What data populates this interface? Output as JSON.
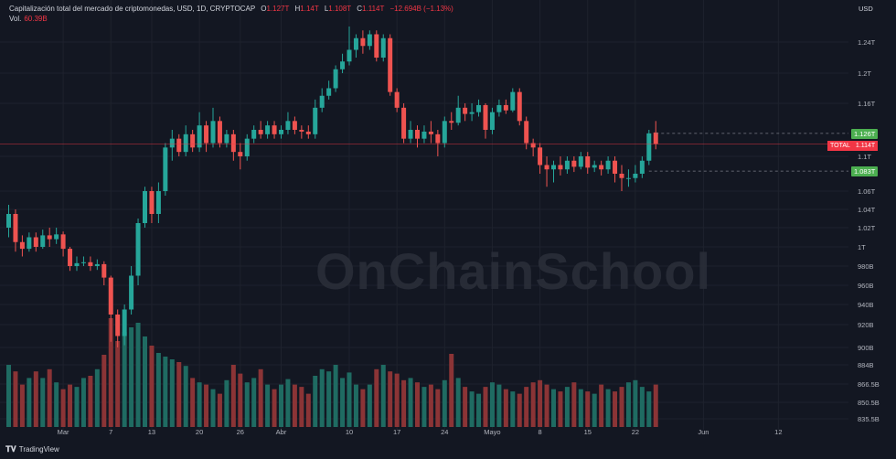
{
  "header": {
    "title": "Capitalización total del mercado de criptomonedas, USD, 1D, CRYPTOCAP",
    "ohlc": [
      {
        "label": "O",
        "value": "1.127T"
      },
      {
        "label": "H",
        "value": "1.14T"
      },
      {
        "label": "L",
        "value": "1.108T"
      },
      {
        "label": "C",
        "value": "1.114T"
      }
    ],
    "change": "−12.694B (−1.13%)",
    "vol_label": "Vol.",
    "vol_value": "60.39B"
  },
  "axis_currency": "USD",
  "brand": "TradingView",
  "watermark": "OnChainSchool",
  "price_tags": {
    "high_line": "1.126T",
    "total_label": "TOTAL",
    "total_value": "1.114T",
    "low_line": "1.083T"
  },
  "colors": {
    "up": "#26a69a",
    "down": "#ef5350",
    "bg": "#131722",
    "grid": "#1e222d"
  },
  "chart_data": {
    "type": "candlestick",
    "y_ticks": [
      "1.24T",
      "1.2T",
      "1.16T",
      "1.1T",
      "1.06T",
      "1.04T",
      "1.02T",
      "1T",
      "980B",
      "960B",
      "940B",
      "920B",
      "900B",
      "884B",
      "866.5B",
      "850.5B",
      "835.5B"
    ],
    "x_ticks": [
      {
        "label": "Mar",
        "index": 8
      },
      {
        "label": "7",
        "index": 15
      },
      {
        "label": "13",
        "index": 21
      },
      {
        "label": "20",
        "index": 28
      },
      {
        "label": "26",
        "index": 34
      },
      {
        "label": "Abr",
        "index": 40
      },
      {
        "label": "10",
        "index": 50
      },
      {
        "label": "17",
        "index": 57
      },
      {
        "label": "24",
        "index": 64
      },
      {
        "label": "Mayo",
        "index": 71
      },
      {
        "label": "8",
        "index": 78
      },
      {
        "label": "15",
        "index": 85
      },
      {
        "label": "22",
        "index": 92
      },
      {
        "label": "Jun",
        "index": 102
      },
      {
        "label": "12",
        "index": 113
      }
    ],
    "candles": [
      [
        1.02,
        1.035,
        1.045,
        1.01
      ],
      [
        1.035,
        1.005,
        1.04,
        0.995
      ],
      [
        1.005,
        0.998,
        1.012,
        0.99
      ],
      [
        0.998,
        1.01,
        1.015,
        0.995
      ],
      [
        1.01,
        1.0,
        1.015,
        0.995
      ],
      [
        1.0,
        1.012,
        1.018,
        0.998
      ],
      [
        1.012,
        1.008,
        1.02,
        1.0
      ],
      [
        1.008,
        1.013,
        1.02,
        1.003
      ],
      [
        1.013,
        0.998,
        1.016,
        0.99
      ],
      [
        0.998,
        0.98,
        1.0,
        0.975
      ],
      [
        0.98,
        0.983,
        0.99,
        0.975
      ],
      [
        0.983,
        0.984,
        0.99,
        0.98
      ],
      [
        0.984,
        0.98,
        0.99,
        0.975
      ],
      [
        0.98,
        0.982,
        0.987,
        0.976
      ],
      [
        0.982,
        0.968,
        0.985,
        0.96
      ],
      [
        0.968,
        0.93,
        0.97,
        0.905
      ],
      [
        0.93,
        0.91,
        0.935,
        0.9
      ],
      [
        0.91,
        0.935,
        0.94,
        0.902
      ],
      [
        0.935,
        0.97,
        0.98,
        0.93
      ],
      [
        0.97,
        1.025,
        1.03,
        0.96
      ],
      [
        1.025,
        1.06,
        1.065,
        1.02
      ],
      [
        1.06,
        1.035,
        1.065,
        1.025
      ],
      [
        1.035,
        1.06,
        1.07,
        1.025
      ],
      [
        1.06,
        1.11,
        1.115,
        1.055
      ],
      [
        1.11,
        1.12,
        1.13,
        1.095
      ],
      [
        1.12,
        1.105,
        1.125,
        1.1
      ],
      [
        1.105,
        1.125,
        1.135,
        1.1
      ],
      [
        1.125,
        1.11,
        1.13,
        1.105
      ],
      [
        1.11,
        1.135,
        1.15,
        1.105
      ],
      [
        1.135,
        1.115,
        1.14,
        1.105
      ],
      [
        1.115,
        1.14,
        1.155,
        1.11
      ],
      [
        1.14,
        1.115,
        1.145,
        1.11
      ],
      [
        1.115,
        1.125,
        1.13,
        1.11
      ],
      [
        1.125,
        1.105,
        1.13,
        1.095
      ],
      [
        1.105,
        1.1,
        1.115,
        1.085
      ],
      [
        1.1,
        1.12,
        1.125,
        1.095
      ],
      [
        1.12,
        1.13,
        1.135,
        1.115
      ],
      [
        1.13,
        1.125,
        1.14,
        1.12
      ],
      [
        1.125,
        1.135,
        1.14,
        1.12
      ],
      [
        1.135,
        1.125,
        1.14,
        1.12
      ],
      [
        1.125,
        1.13,
        1.135,
        1.12
      ],
      [
        1.13,
        1.14,
        1.15,
        1.125
      ],
      [
        1.14,
        1.13,
        1.145,
        1.125
      ],
      [
        1.13,
        1.128,
        1.135,
        1.12
      ],
      [
        1.128,
        1.125,
        1.135,
        1.12
      ],
      [
        1.125,
        1.155,
        1.165,
        1.12
      ],
      [
        1.155,
        1.17,
        1.18,
        1.15
      ],
      [
        1.17,
        1.18,
        1.19,
        1.165
      ],
      [
        1.18,
        1.205,
        1.21,
        1.175
      ],
      [
        1.205,
        1.215,
        1.225,
        1.2
      ],
      [
        1.215,
        1.23,
        1.26,
        1.21
      ],
      [
        1.23,
        1.245,
        1.25,
        1.22
      ],
      [
        1.245,
        1.235,
        1.255,
        1.225
      ],
      [
        1.235,
        1.25,
        1.255,
        1.23
      ],
      [
        1.25,
        1.22,
        1.255,
        1.215
      ],
      [
        1.22,
        1.245,
        1.25,
        1.215
      ],
      [
        1.245,
        1.175,
        1.25,
        1.17
      ],
      [
        1.175,
        1.155,
        1.18,
        1.15
      ],
      [
        1.155,
        1.12,
        1.16,
        1.115
      ],
      [
        1.12,
        1.13,
        1.14,
        1.115
      ],
      [
        1.13,
        1.12,
        1.135,
        1.11
      ],
      [
        1.12,
        1.128,
        1.135,
        1.115
      ],
      [
        1.128,
        1.125,
        1.14,
        1.115
      ],
      [
        1.125,
        1.115,
        1.13,
        1.1
      ],
      [
        1.115,
        1.14,
        1.145,
        1.11
      ],
      [
        1.14,
        1.138,
        1.15,
        1.13
      ],
      [
        1.138,
        1.155,
        1.17,
        1.135
      ],
      [
        1.155,
        1.148,
        1.16,
        1.14
      ],
      [
        1.148,
        1.15,
        1.16,
        1.14
      ],
      [
        1.15,
        1.158,
        1.165,
        1.145
      ],
      [
        1.158,
        1.13,
        1.16,
        1.12
      ],
      [
        1.13,
        1.15,
        1.155,
        1.125
      ],
      [
        1.15,
        1.158,
        1.165,
        1.145
      ],
      [
        1.158,
        1.152,
        1.165,
        1.148
      ],
      [
        1.152,
        1.175,
        1.18,
        1.15
      ],
      [
        1.175,
        1.14,
        1.18,
        1.135
      ],
      [
        1.14,
        1.115,
        1.145,
        1.108
      ],
      [
        1.115,
        1.11,
        1.12,
        1.1
      ],
      [
        1.11,
        1.09,
        1.115,
        1.08
      ],
      [
        1.09,
        1.085,
        1.1,
        1.065
      ],
      [
        1.085,
        1.09,
        1.095,
        1.07
      ],
      [
        1.09,
        1.085,
        1.1,
        1.078
      ],
      [
        1.085,
        1.095,
        1.1,
        1.08
      ],
      [
        1.095,
        1.088,
        1.1,
        1.082
      ],
      [
        1.088,
        1.1,
        1.105,
        1.085
      ],
      [
        1.1,
        1.087,
        1.105,
        1.08
      ],
      [
        1.087,
        1.09,
        1.095,
        1.082
      ],
      [
        1.09,
        1.085,
        1.095,
        1.078
      ],
      [
        1.085,
        1.095,
        1.1,
        1.08
      ],
      [
        1.095,
        1.08,
        1.1,
        1.07
      ],
      [
        1.08,
        1.075,
        1.09,
        1.06
      ],
      [
        1.075,
        1.075,
        1.085,
        1.065
      ],
      [
        1.075,
        1.08,
        1.09,
        1.07
      ],
      [
        1.08,
        1.095,
        1.1,
        1.075
      ],
      [
        1.095,
        1.126,
        1.13,
        1.09
      ],
      [
        1.127,
        1.114,
        1.14,
        1.108
      ]
    ],
    "volumes": [
      884,
      878,
      866,
      872,
      878,
      872,
      880,
      868,
      862,
      866,
      864,
      872,
      874,
      880,
      895,
      935,
      910,
      920,
      925,
      930,
      915,
      905,
      897,
      893,
      890,
      887,
      883,
      872,
      868,
      866,
      862,
      858,
      870,
      884,
      876,
      868,
      872,
      880,
      866,
      862,
      866,
      871,
      866,
      864,
      858,
      874,
      880,
      878,
      884,
      872,
      877,
      866,
      862,
      866,
      880,
      884,
      878,
      876,
      870,
      872,
      868,
      864,
      866,
      862,
      870,
      896,
      872,
      864,
      860,
      858,
      864,
      868,
      866,
      862,
      860,
      858,
      864,
      868,
      870,
      866,
      862,
      860,
      864,
      868,
      862,
      860,
      858,
      866,
      862,
      860,
      864,
      868,
      870,
      864,
      860,
      866
    ]
  }
}
